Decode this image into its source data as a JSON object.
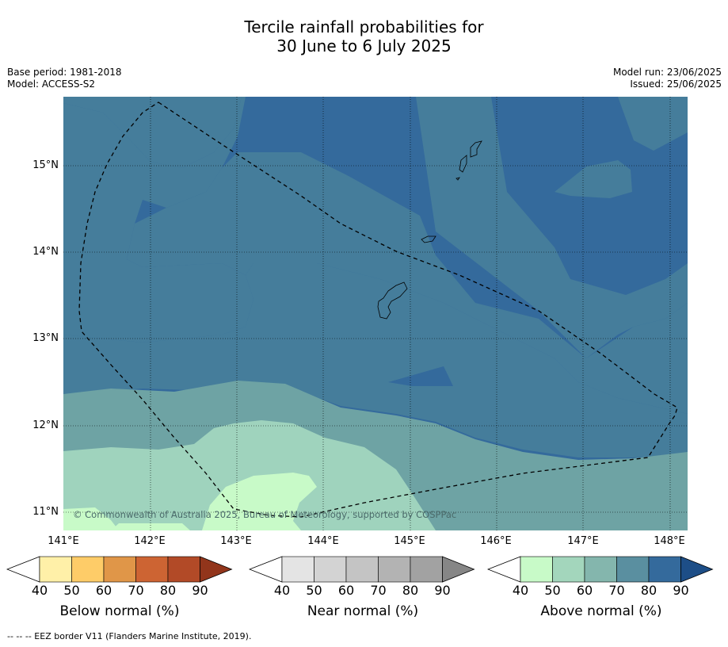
{
  "title_line1": "Tercile rainfall probabilities for",
  "title_line2": "30 June to 6 July 2025",
  "base_period": "Base period: 1981-2018",
  "model": "Model: ACCESS-S2",
  "model_run": "Model run: 23/06/2025",
  "issued": "Issued: 25/06/2025",
  "copyright": "© Commonwealth of Australia 2025, Bureau of Meteorology, supported by COSPPac",
  "lat_labels": [
    "15°N",
    "14°N",
    "13°N",
    "12°N",
    "11°N"
  ],
  "lon_labels": [
    "141°E",
    "142°E",
    "143°E",
    "144°E",
    "145°E",
    "146°E",
    "147°E",
    "148°E"
  ],
  "colorbars": [
    {
      "name": "Below normal (%)",
      "ticks": [
        "40",
        "50",
        "60",
        "70",
        "80",
        "90"
      ],
      "colors": [
        "#fff0a8",
        "#fecc68",
        "#e09648",
        "#cd6433",
        "#b24a27",
        "#92351b"
      ]
    },
    {
      "name": "Near normal (%)",
      "ticks": [
        "40",
        "50",
        "60",
        "70",
        "80",
        "90"
      ],
      "colors": [
        "#e4e4e4",
        "#d3d3d3",
        "#c4c4c4",
        "#b3b3b3",
        "#a2a2a2",
        "#868686"
      ]
    },
    {
      "name": "Above normal (%)",
      "ticks": [
        "40",
        "50",
        "60",
        "70",
        "80",
        "90"
      ],
      "colors": [
        "#c8fac8",
        "#a3d6bc",
        "#84b6ad",
        "#5a8fa0",
        "#346a9c",
        "#1d4e87"
      ]
    }
  ],
  "footnote": "--  --  -- EEZ border V11 (Flanders Marine Institute, 2019)."
}
